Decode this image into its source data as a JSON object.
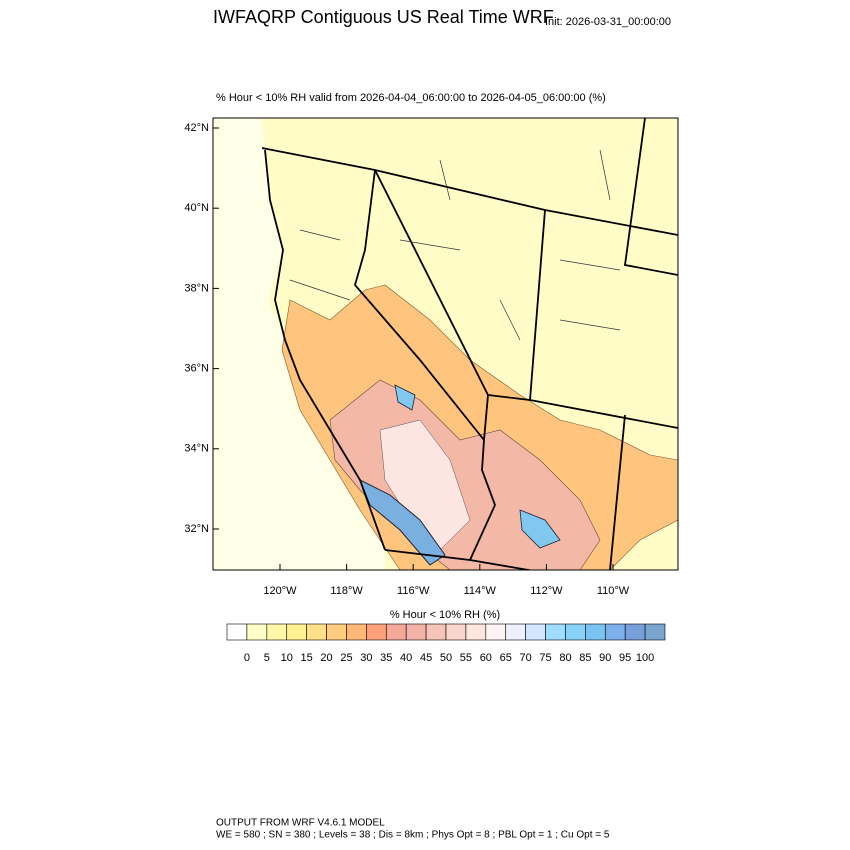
{
  "header": {
    "title": "IWFAQRP Contiguous US Real Time WRF",
    "init": "Init: 2026-03-31_00:00:00"
  },
  "map": {
    "subtitle": "% Hour < 10% RH valid from 2026-04-04_06:00:00 to 2026-04-05_06:00:00   (%)",
    "lat_labels": [
      "42°N",
      "40°N",
      "38°N",
      "36°N",
      "34°N",
      "32°N"
    ],
    "lon_labels": [
      "120°W",
      "118°W",
      "116°W",
      "114°W",
      "112°W",
      "110°W"
    ]
  },
  "colorbar": {
    "title": "% Hour < 10% RH  (%)",
    "labels": [
      0,
      5,
      10,
      15,
      20,
      25,
      30,
      35,
      40,
      45,
      50,
      55,
      60,
      65,
      70,
      75,
      80,
      85,
      90,
      95,
      100
    ],
    "colors": [
      "#ffffff",
      "#ffffc8",
      "#fff8a8",
      "#fff090",
      "#ffe088",
      "#ffcc80",
      "#ffb878",
      "#ffa07a",
      "#f4a898",
      "#f2b4a8",
      "#f4c4b8",
      "#f8d6cc",
      "#fde6de",
      "#fff4f4",
      "#eef0ff",
      "#d4e6ff",
      "#a0dcff",
      "#88d4f8",
      "#7ac4f2",
      "#7cb0ec",
      "#7aa0dc",
      "#78a6cc"
    ]
  },
  "footer": {
    "lines": [
      "OUTPUT FROM WRF V4.6.1 MODEL",
      "WE = 580 ; SN = 380 ; Levels = 38 ; Dis = 8km ; Phys Opt = 8 ; PBL Opt = 1 ; Cu Opt = 5"
    ]
  }
}
